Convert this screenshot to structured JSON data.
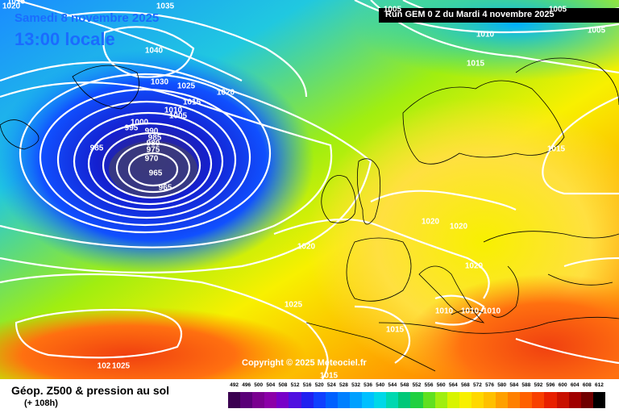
{
  "header": {
    "date": "Samedi 8 novembre 2025",
    "time": "13:00 locale",
    "run": "Run GEM 0 Z du Mardi 4 novembre 2025"
  },
  "copyright": "Copyright © 2025 Meteociel.fr",
  "legend": {
    "title": "Géop. Z500 & pression au sol",
    "subtitle": "(+ 108h)",
    "scale_values": [
      "492",
      "496",
      "500",
      "504",
      "508",
      "512",
      "516",
      "520",
      "524",
      "528",
      "532",
      "536",
      "540",
      "544",
      "548",
      "552",
      "556",
      "560",
      "564",
      "568",
      "572",
      "576",
      "580",
      "584",
      "588",
      "592",
      "596",
      "600",
      "604",
      "608",
      "612"
    ],
    "scale_colors": [
      "#3a0050",
      "#5a0078",
      "#7a0090",
      "#8c00a8",
      "#7800c8",
      "#5010e0",
      "#2020f0",
      "#1040ff",
      "#0060ff",
      "#0080ff",
      "#00a0ff",
      "#00c0ff",
      "#00d8e8",
      "#00d8b0",
      "#00c878",
      "#20d040",
      "#60e020",
      "#a0ee10",
      "#d8f400",
      "#f8f000",
      "#ffd800",
      "#ffc000",
      "#ffa000",
      "#ff8000",
      "#ff6000",
      "#f84000",
      "#e82000",
      "#c81000",
      "#a00000",
      "#700000",
      "#000000"
    ]
  },
  "isobar_labels": [
    {
      "text": "1020",
      "kind": "1020-label"
    },
    {
      "text": "1035",
      "kind": "1035-label"
    },
    {
      "text": "1040",
      "kind": "1040-label"
    },
    {
      "text": "1030",
      "kind": "1030-label"
    },
    {
      "text": "1025",
      "kind": "1025-label"
    },
    {
      "text": "1020",
      "kind": "1020-label"
    },
    {
      "text": "1015",
      "kind": "1015-label"
    },
    {
      "text": "1010",
      "kind": "1010-label"
    },
    {
      "text": "1005",
      "kind": "1005-label"
    },
    {
      "text": "1000",
      "kind": "1000-label"
    },
    {
      "text": "995",
      "kind": "995-label"
    },
    {
      "text": "990",
      "kind": "990-label"
    },
    {
      "text": "985",
      "kind": "985-label"
    },
    {
      "text": "980",
      "kind": "980-label"
    },
    {
      "text": "975",
      "kind": "975-label"
    },
    {
      "text": "970",
      "kind": "970-label"
    },
    {
      "text": "965",
      "kind": "965-label"
    },
    {
      "text": "965",
      "kind": "965-label"
    },
    {
      "text": "985",
      "kind": "985-label"
    },
    {
      "text": "1005",
      "kind": "1005-label"
    },
    {
      "text": "1010",
      "kind": "1010-label"
    },
    {
      "text": "1005",
      "kind": "1005-label"
    },
    {
      "text": "1005",
      "kind": "1005-label"
    },
    {
      "text": "1015",
      "kind": "1015-label"
    },
    {
      "text": "1015",
      "kind": "1015-label"
    },
    {
      "text": "1020",
      "kind": "1020-label"
    },
    {
      "text": "1020",
      "kind": "1020-label"
    },
    {
      "text": "1020",
      "kind": "1020-label"
    },
    {
      "text": "1020",
      "kind": "1020-label"
    },
    {
      "text": "1010",
      "kind": "1010-label"
    },
    {
      "text": "1010",
      "kind": "1010-label"
    },
    {
      "text": "1010",
      "kind": "1010-label"
    },
    {
      "text": "1015",
      "kind": "1015-label"
    },
    {
      "text": "1025",
      "kind": "1025-label"
    },
    {
      "text": "1025",
      "kind": "1025-label"
    },
    {
      "text": "102",
      "kind": "102-label"
    },
    {
      "text": "1015",
      "kind": "1015-label"
    },
    {
      "text": "1015",
      "kind": "1015-label"
    }
  ]
}
